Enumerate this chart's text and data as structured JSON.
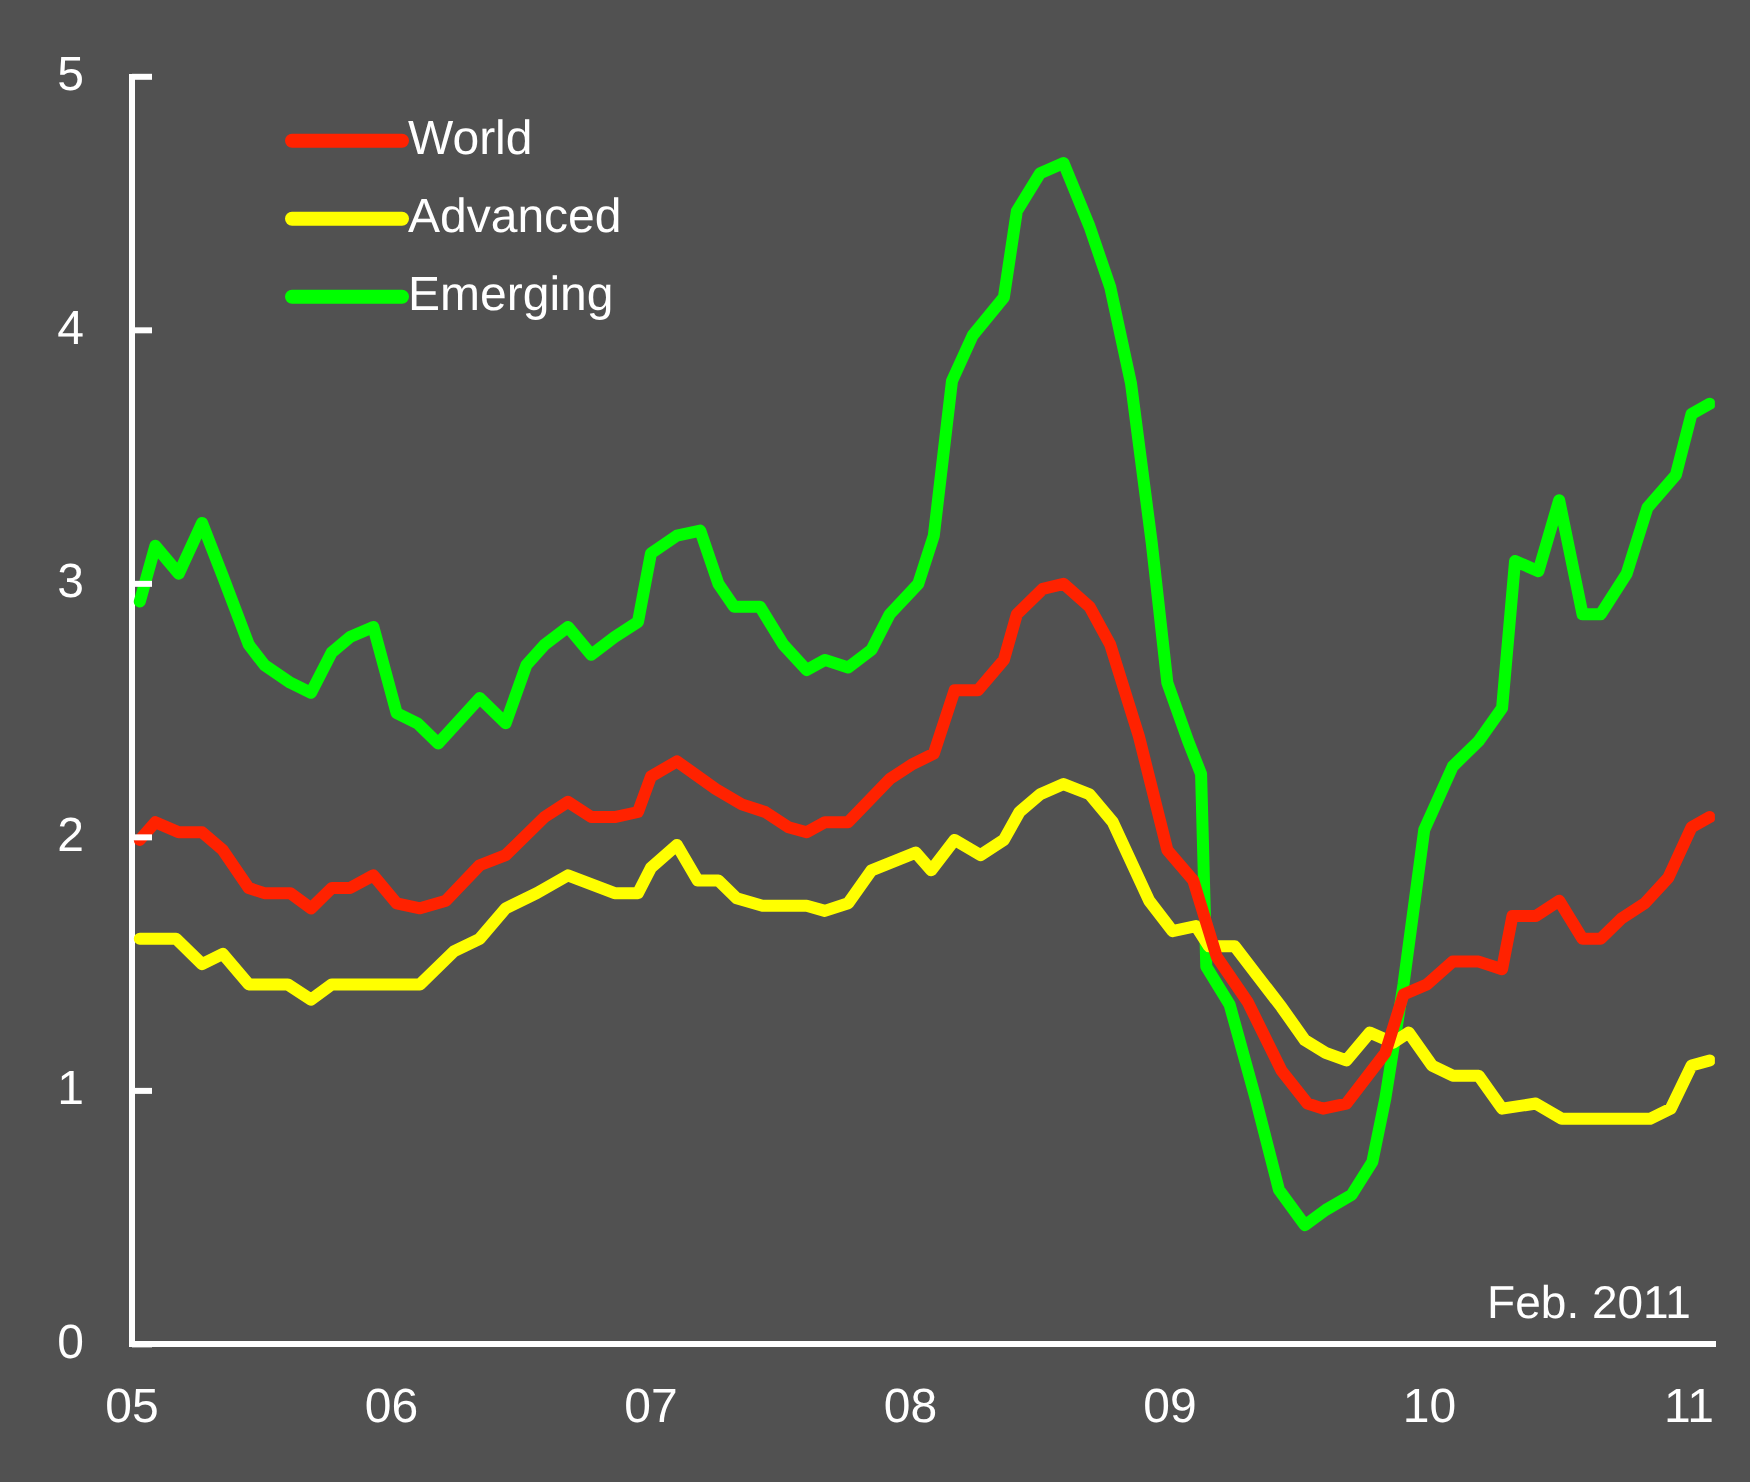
{
  "chart_data": {
    "type": "line",
    "xlim": [
      2005,
      2011.1
    ],
    "xticks": [
      {
        "value": 2005,
        "label": "05"
      },
      {
        "value": 2006,
        "label": "06"
      },
      {
        "value": 2007,
        "label": "07"
      },
      {
        "value": 2008,
        "label": "08"
      },
      {
        "value": 2009,
        "label": "09"
      },
      {
        "value": 2010,
        "label": "10"
      },
      {
        "value": 2011,
        "label": "11"
      }
    ],
    "ylim": [
      0,
      5
    ],
    "yticks": [
      0,
      1,
      2,
      3,
      4,
      5
    ],
    "legend": "top left",
    "marker": "none",
    "line_style": "solid",
    "annotations": [
      "Feb. 2011"
    ],
    "series": [
      {
        "name": "World",
        "color": "#ff2200",
        "x": [
          2005.03,
          2005.09,
          2005.18,
          2005.27,
          2005.35,
          2005.45,
          2005.51,
          2005.61,
          2005.69,
          2005.77,
          2005.84,
          2005.93,
          2006.02,
          2006.11,
          2006.21,
          2006.34,
          2006.44,
          2006.59,
          2006.68,
          2006.77,
          2006.86,
          2006.95,
          2007.0,
          2007.1,
          2007.25,
          2007.35,
          2007.44,
          2007.53,
          2007.6,
          2007.67,
          2007.76,
          2007.92,
          2008.01,
          2008.09,
          2008.17,
          2008.26,
          2008.36,
          2008.41,
          2008.51,
          2008.59,
          2008.69,
          2008.77,
          2008.88,
          2008.99,
          2009.09,
          2009.18,
          2009.3,
          2009.43,
          2009.53,
          2009.59,
          2009.68,
          2009.83,
          2009.9,
          2009.99,
          2010.09,
          2010.19,
          2010.28,
          2010.32,
          2010.41,
          2010.5,
          2010.59,
          2010.66,
          2010.74,
          2010.83,
          2010.92,
          2011.01,
          2011.08
        ],
        "values": [
          1.99,
          2.06,
          2.02,
          2.02,
          1.95,
          1.8,
          1.78,
          1.78,
          1.72,
          1.8,
          1.8,
          1.85,
          1.74,
          1.72,
          1.75,
          1.89,
          1.93,
          2.08,
          2.14,
          2.08,
          2.08,
          2.1,
          2.24,
          2.3,
          2.19,
          2.13,
          2.1,
          2.04,
          2.02,
          2.06,
          2.06,
          2.23,
          2.29,
          2.33,
          2.58,
          2.58,
          2.7,
          2.88,
          2.98,
          3.0,
          2.91,
          2.76,
          2.4,
          1.95,
          1.83,
          1.53,
          1.35,
          1.08,
          0.95,
          0.93,
          0.95,
          1.15,
          1.38,
          1.42,
          1.51,
          1.51,
          1.48,
          1.69,
          1.69,
          1.75,
          1.6,
          1.6,
          1.68,
          1.74,
          1.84,
          2.04,
          2.08
        ]
      },
      {
        "name": "Advanced",
        "color": "#ffff00",
        "x": [
          2005.03,
          2005.17,
          2005.27,
          2005.35,
          2005.45,
          2005.6,
          2005.69,
          2005.77,
          2006.11,
          2006.24,
          2006.34,
          2006.44,
          2006.56,
          2006.68,
          2006.86,
          2006.95,
          2007.0,
          2007.1,
          2007.18,
          2007.26,
          2007.33,
          2007.43,
          2007.6,
          2007.67,
          2007.76,
          2007.85,
          2008.02,
          2008.08,
          2008.17,
          2008.27,
          2008.36,
          2008.42,
          2008.5,
          2008.59,
          2008.69,
          2008.78,
          2008.92,
          2009.01,
          2009.1,
          2009.15,
          2009.25,
          2009.34,
          2009.43,
          2009.52,
          2009.6,
          2009.68,
          2009.77,
          2009.86,
          2009.92,
          2010.01,
          2010.09,
          2010.19,
          2010.28,
          2010.41,
          2010.51,
          2010.85,
          2010.93,
          2011.01,
          2011.08
        ],
        "values": [
          1.6,
          1.6,
          1.5,
          1.54,
          1.42,
          1.42,
          1.36,
          1.42,
          1.42,
          1.55,
          1.6,
          1.72,
          1.78,
          1.85,
          1.78,
          1.78,
          1.88,
          1.97,
          1.83,
          1.83,
          1.76,
          1.73,
          1.73,
          1.71,
          1.74,
          1.87,
          1.94,
          1.87,
          1.99,
          1.93,
          1.99,
          2.1,
          2.17,
          2.21,
          2.17,
          2.06,
          1.75,
          1.63,
          1.65,
          1.57,
          1.57,
          1.45,
          1.33,
          1.2,
          1.15,
          1.12,
          1.23,
          1.19,
          1.23,
          1.1,
          1.06,
          1.06,
          0.93,
          0.95,
          0.89,
          0.89,
          0.93,
          1.1,
          1.12
        ]
      },
      {
        "name": "Emerging",
        "color": "#00ff00",
        "x": [
          2005.03,
          2005.09,
          2005.18,
          2005.27,
          2005.35,
          2005.45,
          2005.51,
          2005.61,
          2005.69,
          2005.77,
          2005.84,
          2005.93,
          2006.02,
          2006.1,
          2006.18,
          2006.34,
          2006.44,
          2006.52,
          2006.59,
          2006.68,
          2006.77,
          2006.86,
          2006.95,
          2007.0,
          2007.1,
          2007.19,
          2007.26,
          2007.32,
          2007.42,
          2007.51,
          2007.6,
          2007.67,
          2007.76,
          2007.85,
          2007.92,
          2008.03,
          2008.09,
          2008.16,
          2008.24,
          2008.36,
          2008.41,
          2008.5,
          2008.59,
          2008.69,
          2008.77,
          2008.85,
          2008.93,
          2008.99,
          2009.07,
          2009.12,
          2009.14,
          2009.23,
          2009.33,
          2009.42,
          2009.52,
          2009.6,
          2009.7,
          2009.78,
          2009.83,
          2009.9,
          2009.98,
          2010.09,
          2010.19,
          2010.28,
          2010.33,
          2010.42,
          2010.5,
          2010.59,
          2010.66,
          2010.76,
          2010.84,
          2010.95,
          2011.01,
          2011.08
        ],
        "values": [
          2.93,
          3.15,
          3.04,
          3.24,
          3.03,
          2.76,
          2.68,
          2.61,
          2.57,
          2.73,
          2.79,
          2.83,
          2.49,
          2.45,
          2.37,
          2.55,
          2.45,
          2.68,
          2.76,
          2.83,
          2.72,
          2.79,
          2.85,
          3.12,
          3.19,
          3.21,
          3.0,
          2.91,
          2.91,
          2.76,
          2.66,
          2.7,
          2.67,
          2.74,
          2.88,
          3.0,
          3.19,
          3.8,
          3.98,
          4.13,
          4.47,
          4.62,
          4.66,
          4.41,
          4.17,
          3.79,
          3.16,
          2.61,
          2.38,
          2.25,
          1.49,
          1.34,
          0.97,
          0.61,
          0.47,
          0.53,
          0.59,
          0.72,
          0.97,
          1.42,
          2.03,
          2.28,
          2.38,
          2.51,
          3.09,
          3.05,
          3.33,
          2.88,
          2.88,
          3.04,
          3.3,
          3.43,
          3.67,
          3.71
        ]
      }
    ]
  }
}
